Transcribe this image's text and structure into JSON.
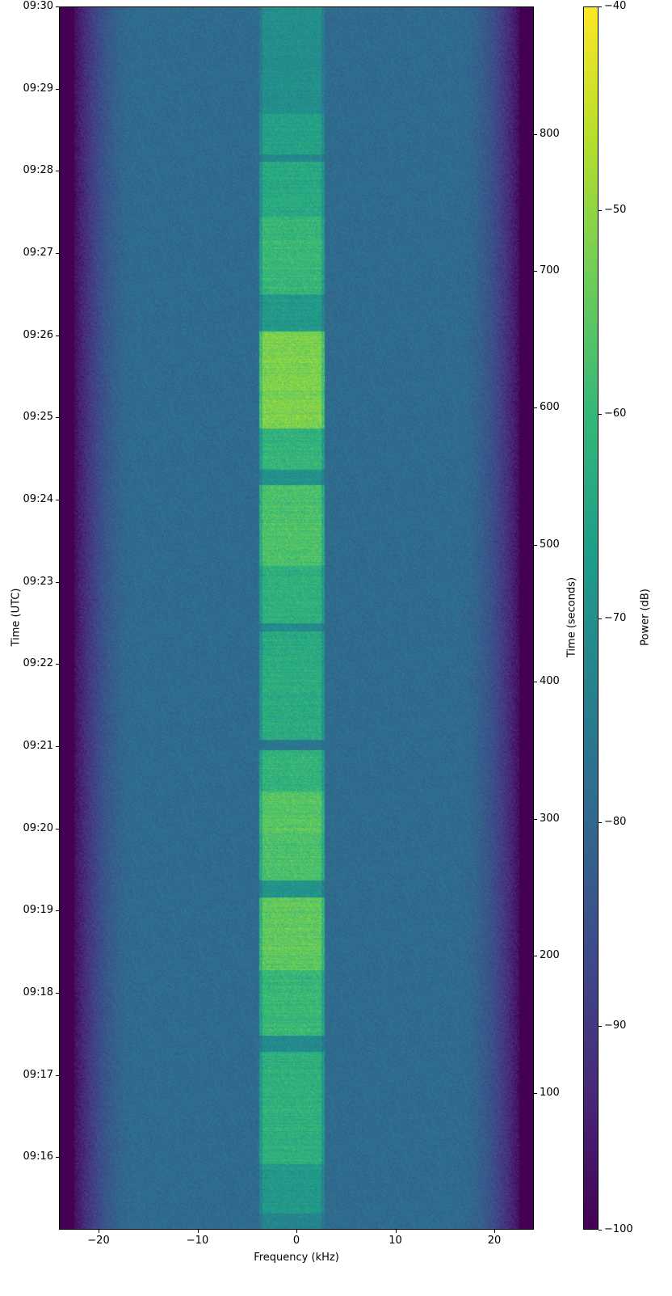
{
  "chart_data": {
    "type": "heatmap",
    "subtype": "spectrogram",
    "xlabel": "Frequency (kHz)",
    "ylabel_left": "Time (UTC)",
    "ylabel_right": "Time (seconds)",
    "colorbar_label": "Power (dB)",
    "colormap": "viridis",
    "xlim": [
      -24,
      24
    ],
    "ylim_seconds": [
      0,
      893
    ],
    "clim": [
      -100,
      -40
    ],
    "x_ticks": [
      "−20",
      "−10",
      "0",
      "10",
      "20"
    ],
    "x_tick_values": [
      -20,
      -10,
      0,
      10,
      20
    ],
    "utc_ticks": [
      "09:16",
      "09:17",
      "09:18",
      "09:19",
      "09:20",
      "09:21",
      "09:22",
      "09:23",
      "09:24",
      "09:25",
      "09:26",
      "09:27",
      "09:28",
      "09:29",
      "09:30"
    ],
    "utc_tick_seconds": [
      53,
      113,
      173,
      233,
      293,
      353,
      413,
      473,
      533,
      593,
      653,
      713,
      773,
      833,
      893
    ],
    "seconds_ticks": [
      "100",
      "200",
      "300",
      "400",
      "500",
      "600",
      "700",
      "800"
    ],
    "seconds_tick_values": [
      100,
      200,
      300,
      400,
      500,
      600,
      700,
      800
    ],
    "colorbar_ticks": [
      "−40",
      "−50",
      "−60",
      "−70",
      "−80",
      "−90",
      "−100"
    ],
    "colorbar_tick_values": [
      -40,
      -50,
      -60,
      -70,
      -80,
      -90,
      -100
    ],
    "noise_floor_db": -79,
    "passband_edges_khz": [
      -22.5,
      22.5
    ],
    "signal_band_khz": [
      -3.5,
      2.5
    ],
    "signal_segments": [
      {
        "start_s": 0,
        "end_s": 12,
        "peak_db": -74
      },
      {
        "start_s": 12,
        "end_s": 48,
        "peak_db": -68
      },
      {
        "start_s": 48,
        "end_s": 130,
        "peak_db": -62
      },
      {
        "start_s": 130,
        "end_s": 142,
        "peak_db": -72
      },
      {
        "start_s": 142,
        "end_s": 190,
        "peak_db": -60
      },
      {
        "start_s": 190,
        "end_s": 243,
        "peak_db": -55
      },
      {
        "start_s": 243,
        "end_s": 255,
        "peak_db": -70
      },
      {
        "start_s": 255,
        "end_s": 290,
        "peak_db": -57
      },
      {
        "start_s": 290,
        "end_s": 320,
        "peak_db": -56
      },
      {
        "start_s": 320,
        "end_s": 350,
        "peak_db": -61
      },
      {
        "start_s": 350,
        "end_s": 358,
        "peak_db": -80
      },
      {
        "start_s": 358,
        "end_s": 437,
        "peak_db": -63
      },
      {
        "start_s": 437,
        "end_s": 443,
        "peak_db": -72
      },
      {
        "start_s": 443,
        "end_s": 485,
        "peak_db": -62
      },
      {
        "start_s": 485,
        "end_s": 544,
        "peak_db": -57
      },
      {
        "start_s": 544,
        "end_s": 555,
        "peak_db": -70
      },
      {
        "start_s": 555,
        "end_s": 585,
        "peak_db": -61
      },
      {
        "start_s": 585,
        "end_s": 656,
        "peak_db": -52
      },
      {
        "start_s": 656,
        "end_s": 683,
        "peak_db": -68
      },
      {
        "start_s": 683,
        "end_s": 740,
        "peak_db": -60
      },
      {
        "start_s": 740,
        "end_s": 780,
        "peak_db": -64
      },
      {
        "start_s": 780,
        "end_s": 785,
        "peak_db": -73
      },
      {
        "start_s": 785,
        "end_s": 815,
        "peak_db": -66
      },
      {
        "start_s": 815,
        "end_s": 893,
        "peak_db": -71
      }
    ]
  }
}
